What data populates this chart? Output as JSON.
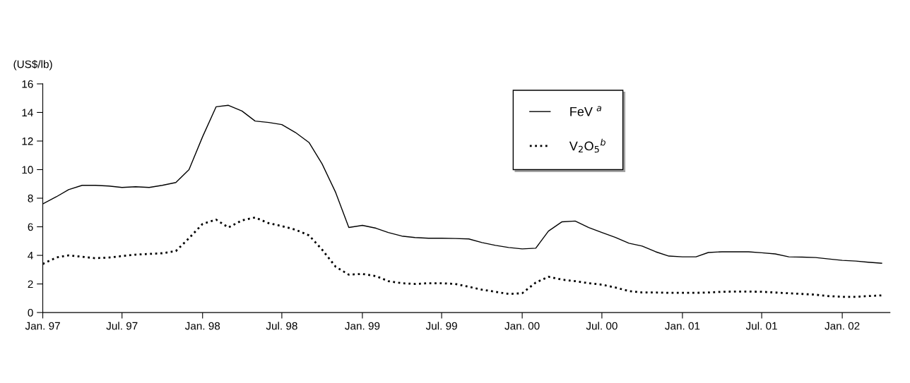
{
  "chart_data": {
    "type": "line",
    "ylabel": "(US$/lb)",
    "x": [
      "1997-01",
      "1997-02",
      "1997-03",
      "1997-04",
      "1997-05",
      "1997-06",
      "1997-07",
      "1997-08",
      "1997-09",
      "1997-10",
      "1997-11",
      "1997-12",
      "1998-01",
      "1998-02",
      "1998-03",
      "1998-04",
      "1998-05",
      "1998-06",
      "1998-07",
      "1998-08",
      "1998-09",
      "1998-10",
      "1998-11",
      "1998-12",
      "1999-01",
      "1999-02",
      "1999-03",
      "1999-04",
      "1999-05",
      "1999-06",
      "1999-07",
      "1999-08",
      "1999-09",
      "1999-10",
      "1999-11",
      "1999-12",
      "2000-01",
      "2000-02",
      "2000-03",
      "2000-04",
      "2000-05",
      "2000-06",
      "2000-07",
      "2000-08",
      "2000-09",
      "2000-10",
      "2000-11",
      "2000-12",
      "2001-01",
      "2001-02",
      "2001-03",
      "2001-04",
      "2001-05",
      "2001-06",
      "2001-07",
      "2001-08",
      "2001-09",
      "2001-10",
      "2001-11",
      "2001-12",
      "2002-01",
      "2002-02",
      "2002-03",
      "2002-04"
    ],
    "series": [
      {
        "name": "FeV $^{a}$",
        "color": "#000000",
        "line_style": "solid",
        "values": [
          7.6,
          8.1,
          8.6,
          8.9,
          8.9,
          8.85,
          8.75,
          8.8,
          8.75,
          8.9,
          9.1,
          10.0,
          12.3,
          14.4,
          14.5,
          14.1,
          13.4,
          13.3,
          13.15,
          12.6,
          11.9,
          10.4,
          8.4,
          5.95,
          6.1,
          5.9,
          5.6,
          5.35,
          5.25,
          5.2,
          5.2,
          5.18,
          5.15,
          4.9,
          4.7,
          4.55,
          4.45,
          4.5,
          5.7,
          6.35,
          6.4,
          5.95,
          5.6,
          5.25,
          4.85,
          4.65,
          4.25,
          3.95,
          3.9,
          3.9,
          4.2,
          4.25,
          4.25,
          4.25,
          4.18,
          4.1,
          3.9,
          3.88,
          3.85,
          3.75,
          3.65,
          3.6,
          3.52,
          3.45
        ]
      },
      {
        "name": "V$_{2}$O$_{5}$$^{b}$",
        "color": "#000000",
        "line_style": "dotted",
        "values": [
          3.4,
          3.85,
          4.0,
          3.9,
          3.8,
          3.85,
          3.95,
          4.05,
          4.1,
          4.15,
          4.3,
          5.2,
          6.2,
          6.5,
          5.95,
          6.45,
          6.65,
          6.25,
          6.05,
          5.8,
          5.4,
          4.4,
          3.2,
          2.65,
          2.7,
          2.55,
          2.2,
          2.05,
          2.0,
          2.05,
          2.05,
          2.0,
          1.8,
          1.6,
          1.45,
          1.3,
          1.35,
          2.1,
          2.5,
          2.3,
          2.2,
          2.05,
          1.95,
          1.75,
          1.5,
          1.4,
          1.4,
          1.38,
          1.38,
          1.38,
          1.4,
          1.45,
          1.47,
          1.47,
          1.45,
          1.4,
          1.35,
          1.3,
          1.25,
          1.15,
          1.1,
          1.1,
          1.15,
          1.2
        ]
      }
    ],
    "xlim": [
      "1997-01-01",
      "2002-04-20"
    ],
    "xticks": [
      {
        "value": "1997-01-01",
        "label": "Jan. 97"
      },
      {
        "value": "1997-07-01",
        "label": "Jul. 97"
      },
      {
        "value": "1998-01-01",
        "label": "Jan. 98"
      },
      {
        "value": "1998-07-01",
        "label": "Jul. 98"
      },
      {
        "value": "1999-01-01",
        "label": "Jan. 99"
      },
      {
        "value": "1999-07-01",
        "label": "Jul. 99"
      },
      {
        "value": "2000-01-01",
        "label": "Jan. 00"
      },
      {
        "value": "2000-07-01",
        "label": "Jul. 00"
      },
      {
        "value": "2001-01-01",
        "label": "Jan. 01"
      },
      {
        "value": "2001-07-01",
        "label": "Jul. 01"
      },
      {
        "value": "2002-01-01",
        "label": "Jan. 02"
      }
    ],
    "ylim": [
      0,
      16
    ],
    "yticks": [
      0,
      2,
      4,
      6,
      8,
      10,
      12,
      14,
      16
    ],
    "grid": false,
    "legend": "top"
  }
}
